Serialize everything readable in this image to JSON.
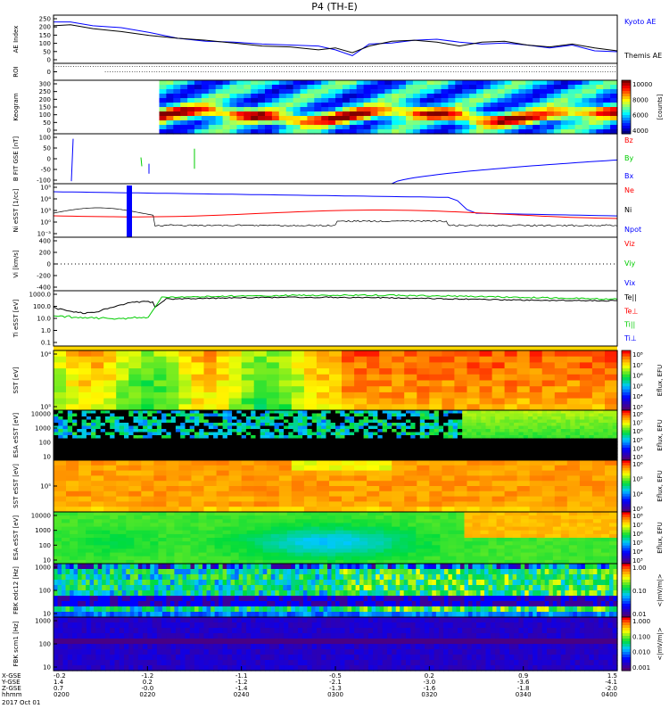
{
  "title": "P4 (TH-E)",
  "colors": {
    "blue": "#0000ff",
    "red": "#ff0000",
    "green": "#00cc00",
    "black": "#000000"
  },
  "chart_data": [
    {
      "id": "ae",
      "type": "line",
      "ylabel": "AE Index",
      "ylim": [
        0,
        250
      ],
      "yticks": [
        "250",
        "200",
        "150",
        "100",
        "50",
        "0"
      ],
      "legend": [
        {
          "label": "Kyoto AE",
          "color": "#0000ff"
        },
        {
          "label": "Themis AE",
          "color": "#000000"
        }
      ],
      "series": [
        {
          "name": "Kyoto AE",
          "color": "#0000ff",
          "x": [
            0,
            0.03,
            0.07,
            0.12,
            0.17,
            0.22,
            0.27,
            0.32,
            0.37,
            0.42,
            0.47,
            0.5,
            0.53,
            0.56,
            0.6,
            0.64,
            0.68,
            0.72,
            0.76,
            0.8,
            0.84,
            0.88,
            0.92,
            0.96,
            1.0
          ],
          "y": [
            215,
            215,
            195,
            185,
            160,
            130,
            115,
            110,
            100,
            95,
            90,
            70,
            40,
            100,
            105,
            120,
            125,
            110,
            100,
            105,
            95,
            80,
            95,
            65,
            60
          ]
        },
        {
          "name": "Themis AE",
          "color": "#000000",
          "x": [
            0,
            0.03,
            0.07,
            0.12,
            0.17,
            0.22,
            0.27,
            0.32,
            0.37,
            0.42,
            0.47,
            0.5,
            0.53,
            0.56,
            0.6,
            0.64,
            0.68,
            0.72,
            0.76,
            0.8,
            0.84,
            0.88,
            0.92,
            0.96,
            1.0
          ],
          "y": [
            195,
            200,
            180,
            165,
            145,
            130,
            120,
            105,
            90,
            85,
            70,
            80,
            55,
            90,
            115,
            120,
            110,
            90,
            110,
            115,
            95,
            85,
            100,
            80,
            65
          ]
        }
      ]
    },
    {
      "id": "roi",
      "type": "scatter",
      "ylabel": "ROI",
      "yticks": [
        "0"
      ]
    },
    {
      "id": "keogram",
      "type": "heatmap",
      "ylabel": "Keogram",
      "ylim": [
        0,
        300
      ],
      "yticks": [
        "300",
        "250",
        "200",
        "150",
        "100",
        "50",
        "0"
      ],
      "colorbar": {
        "label": "[counts]",
        "ticks": [
          "10000",
          "8000",
          "6000",
          "4000"
        ]
      }
    },
    {
      "id": "bfit",
      "type": "line",
      "ylabel": "B FIT GSE [nT]",
      "ylim": [
        -100,
        100
      ],
      "yticks": [
        "100",
        "50",
        "0",
        "-50",
        "-100"
      ],
      "legend": [
        {
          "label": "Bz",
          "color": "#ff0000"
        },
        {
          "label": "By",
          "color": "#00cc00"
        },
        {
          "label": "Bx",
          "color": "#0000ff"
        }
      ]
    },
    {
      "id": "ni",
      "type": "line",
      "ylabel": "Ni eSST [1/cc]",
      "scale": "log",
      "yticks": [
        "10⁵",
        "10⁴",
        "10³",
        "10⁰",
        "10⁻³"
      ],
      "legend": [
        {
          "label": "Ne",
          "color": "#ff0000"
        },
        {
          "label": "Ni",
          "color": "#000000"
        },
        {
          "label": "Npot",
          "color": "#0000ff"
        }
      ]
    },
    {
      "id": "vi",
      "type": "line",
      "ylabel": "Vi [km/s]",
      "ylim": [
        -400,
        400
      ],
      "yticks": [
        "400",
        "200",
        "0",
        "-200",
        "-400"
      ],
      "legend": [
        {
          "label": "Viz",
          "color": "#ff0000"
        },
        {
          "label": "Viy",
          "color": "#00cc00"
        },
        {
          "label": "Vix",
          "color": "#0000ff"
        }
      ]
    },
    {
      "id": "ti",
      "type": "line",
      "ylabel": "Ti eSST [eV]",
      "scale": "log",
      "yticks": [
        "1000.0",
        "100.0",
        "10.0",
        "1.0",
        "0.1"
      ],
      "legend": [
        {
          "label": "Te||",
          "color": "#000000"
        },
        {
          "label": "Te⊥",
          "color": "#ff0000"
        },
        {
          "label": "Ti||",
          "color": "#00cc00"
        },
        {
          "label": "Ti⊥",
          "color": "#0000ff"
        }
      ]
    },
    {
      "id": "sst_e",
      "type": "heatmap",
      "ylabel": "SST [eV]",
      "yticks": [
        "10⁴",
        "10⁵"
      ],
      "colorbar": {
        "label": "Eflux, EFU",
        "ticks": [
          "10⁸",
          "10⁷",
          "10⁶",
          "10⁵",
          "10⁴",
          "10³"
        ]
      }
    },
    {
      "id": "esa_e",
      "type": "heatmap",
      "ylabel": "ESA eSST [eV]",
      "yticks": [
        "10000",
        "1000",
        "100",
        "10"
      ],
      "colorbar": {
        "label": "Eflux, EFU",
        "ticks": [
          "10⁸",
          "10⁷",
          "10⁶",
          "10⁵",
          "10⁴",
          "10³"
        ]
      }
    },
    {
      "id": "sst_i",
      "type": "heatmap",
      "ylabel": "SST eSST [eV]",
      "yticks": [
        "10⁵"
      ],
      "colorbar": {
        "label": "Eflux, EFU",
        "ticks": [
          "10⁶",
          "10⁵",
          "10⁴",
          "10³"
        ]
      }
    },
    {
      "id": "esa_i",
      "type": "heatmap",
      "ylabel": "ESA eSST [eV]",
      "yticks": [
        "10000",
        "1000",
        "100",
        "10"
      ],
      "colorbar": {
        "label": "Eflux, EFU",
        "ticks": [
          "10⁸",
          "10⁷",
          "10⁶",
          "10⁵",
          "10⁴",
          "10³"
        ]
      }
    },
    {
      "id": "fbk_e",
      "type": "heatmap",
      "ylabel": "FBK edc12 [Hz]",
      "yticks": [
        "1000",
        "100",
        "10"
      ],
      "colorbar": {
        "label": "<|mV/m|>",
        "ticks": [
          "1.00",
          "0.10",
          "0.01"
        ]
      }
    },
    {
      "id": "fbk_b",
      "type": "heatmap",
      "ylabel": "FBK scm1 [Hz]",
      "yticks": [
        "1000",
        "100",
        "10"
      ],
      "colorbar": {
        "label": "<|mV/m|>",
        "ticks": [
          "1.000",
          "0.100",
          "0.010",
          "0.001"
        ]
      }
    }
  ],
  "xaxis": {
    "row_labels": [
      "X-GSE",
      "Y-GSE",
      "Z-GSE",
      "hhmm",
      "2017 Oct 01"
    ],
    "columns": [
      {
        "x": "-0.2",
        "y": "1.4",
        "z": "0.7",
        "t": "0200"
      },
      {
        "x": "-1.2",
        "y": "0.2",
        "z": "-0.0",
        "t": "0220"
      },
      {
        "x": "-1.1",
        "y": "-1.2",
        "z": "-1.4",
        "t": "0240"
      },
      {
        "x": "-0.5",
        "y": "-2.1",
        "z": "-1.3",
        "t": "0300"
      },
      {
        "x": "0.2",
        "y": "-3.0",
        "z": "-1.6",
        "t": "0320"
      },
      {
        "x": "0.9",
        "y": "-3.6",
        "z": "-1.8",
        "t": "0340"
      },
      {
        "x": "1.5",
        "y": "-4.1",
        "z": "-2.0",
        "t": "0400"
      }
    ]
  }
}
